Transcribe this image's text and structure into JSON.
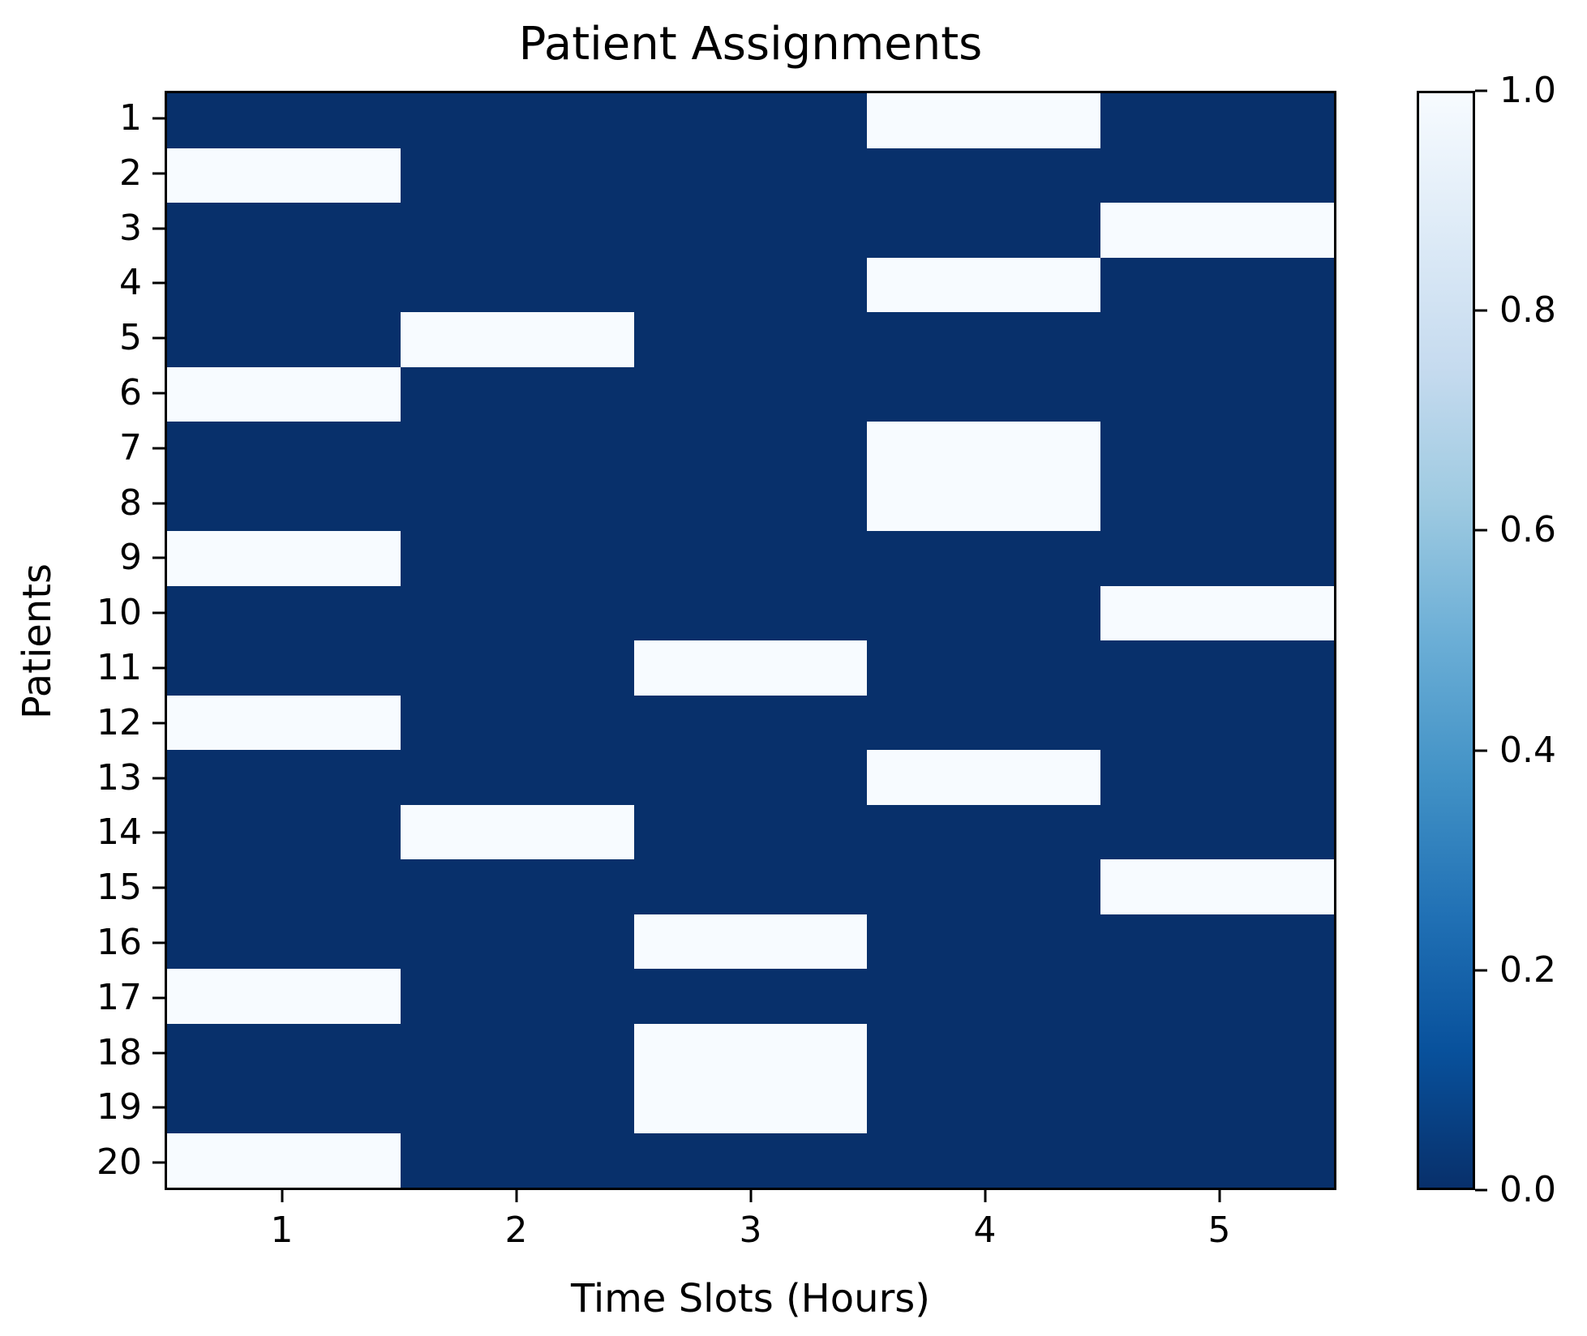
{
  "chart_data": {
    "type": "heatmap",
    "title": "Patient Assignments",
    "xlabel": "Time Slots (Hours)",
    "ylabel": "Patients",
    "x_categories": [
      "1",
      "2",
      "3",
      "4",
      "5"
    ],
    "y_categories": [
      "1",
      "2",
      "3",
      "4",
      "5",
      "6",
      "7",
      "8",
      "9",
      "10",
      "11",
      "12",
      "13",
      "14",
      "15",
      "16",
      "17",
      "18",
      "19",
      "20"
    ],
    "value_range": [
      0,
      1
    ],
    "matrix": [
      [
        0,
        0,
        0,
        1,
        0
      ],
      [
        1,
        0,
        0,
        0,
        0
      ],
      [
        0,
        0,
        0,
        0,
        1
      ],
      [
        0,
        0,
        0,
        1,
        0
      ],
      [
        0,
        1,
        0,
        0,
        0
      ],
      [
        1,
        0,
        0,
        0,
        0
      ],
      [
        0,
        0,
        0,
        1,
        0
      ],
      [
        0,
        0,
        0,
        1,
        0
      ],
      [
        1,
        0,
        0,
        0,
        0
      ],
      [
        0,
        0,
        0,
        0,
        1
      ],
      [
        0,
        0,
        1,
        0,
        0
      ],
      [
        1,
        0,
        0,
        0,
        0
      ],
      [
        0,
        0,
        0,
        1,
        0
      ],
      [
        0,
        1,
        0,
        0,
        0
      ],
      [
        0,
        0,
        0,
        0,
        1
      ],
      [
        0,
        0,
        1,
        0,
        0
      ],
      [
        1,
        0,
        0,
        0,
        0
      ],
      [
        0,
        0,
        1,
        0,
        0
      ],
      [
        0,
        0,
        1,
        0,
        0
      ],
      [
        1,
        0,
        0,
        0,
        0
      ]
    ],
    "assignments": [
      {
        "patient": "1",
        "time_slot": "4"
      },
      {
        "patient": "2",
        "time_slot": "1"
      },
      {
        "patient": "3",
        "time_slot": "5"
      },
      {
        "patient": "4",
        "time_slot": "4"
      },
      {
        "patient": "5",
        "time_slot": "2"
      },
      {
        "patient": "6",
        "time_slot": "1"
      },
      {
        "patient": "7",
        "time_slot": "4"
      },
      {
        "patient": "8",
        "time_slot": "4"
      },
      {
        "patient": "9",
        "time_slot": "1"
      },
      {
        "patient": "10",
        "time_slot": "5"
      },
      {
        "patient": "11",
        "time_slot": "3"
      },
      {
        "patient": "12",
        "time_slot": "1"
      },
      {
        "patient": "13",
        "time_slot": "4"
      },
      {
        "patient": "14",
        "time_slot": "2"
      },
      {
        "patient": "15",
        "time_slot": "5"
      },
      {
        "patient": "16",
        "time_slot": "3"
      },
      {
        "patient": "17",
        "time_slot": "1"
      },
      {
        "patient": "18",
        "time_slot": "3"
      },
      {
        "patient": "19",
        "time_slot": "3"
      },
      {
        "patient": "20",
        "time_slot": "1"
      }
    ],
    "grid": false,
    "legend_position": "none",
    "colorbar": {
      "ticks": [
        {
          "label": "1.0",
          "value": 1.0
        },
        {
          "label": "0.8",
          "value": 0.8
        },
        {
          "label": "0.6",
          "value": 0.6
        },
        {
          "label": "0.4",
          "value": 0.4
        },
        {
          "label": "0.2",
          "value": 0.2
        },
        {
          "label": "0.0",
          "value": 0.0
        }
      ],
      "gradient_top_to_bottom": [
        "#f7fbff",
        "#deebf7",
        "#c6dbef",
        "#9ecae1",
        "#6baed6",
        "#4292c6",
        "#2171b5",
        "#08519c",
        "#08306b"
      ]
    },
    "colors": {
      "value_zero_cell": "#08306b",
      "value_one_cell": "#f7fbff",
      "axes_line": "#000000",
      "text": "#000000",
      "background": "#ffffff"
    }
  }
}
